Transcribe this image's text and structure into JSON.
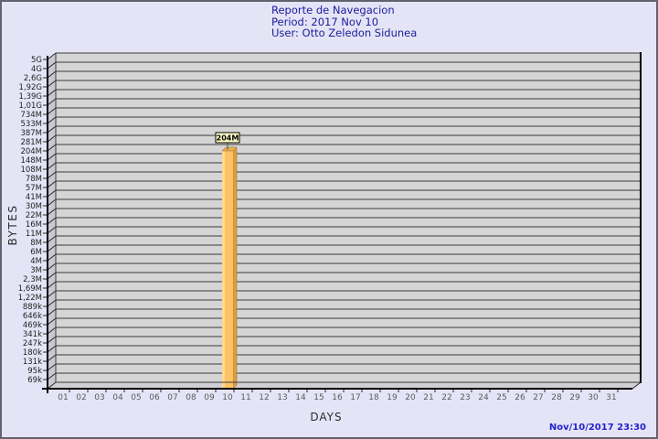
{
  "window": {
    "background_color": "#e4e4f6",
    "border_color": "#62626e"
  },
  "header": {
    "title_line": "Reporte de Navegacion",
    "period_line": "Period: 2017 Nov 10",
    "user_line": "User: Otto Zeledon Sidunea",
    "text_color": "#1c1c9c"
  },
  "footer": {
    "timestamp": "Nov/10/2017 23:30",
    "text_color": "#2222cc"
  },
  "chart_data": {
    "type": "bar",
    "title": "Reporte de Navegacion",
    "subtitle": [
      "Period: 2017 Nov 10",
      "User: Otto Zeledon Sidunea"
    ],
    "xlabel": "DAYS",
    "ylabel": "BYTES",
    "style": "3d-bar",
    "grid": true,
    "legend": "none",
    "scale_note": "logarithmic-like descending byte scale, top 5G to bottom 69k",
    "x_tick_labels": [
      "01",
      "02",
      "03",
      "04",
      "05",
      "06",
      "07",
      "08",
      "09",
      "10",
      "11",
      "12",
      "13",
      "14",
      "15",
      "16",
      "17",
      "18",
      "19",
      "20",
      "21",
      "22",
      "23",
      "24",
      "25",
      "26",
      "27",
      "28",
      "29",
      "30",
      "31"
    ],
    "y_tick_labels": [
      "5G",
      "4G",
      "2,6G",
      "1,92G",
      "1,39G",
      "1,01G",
      "734M",
      "533M",
      "387M",
      "281M",
      "204M",
      "148M",
      "108M",
      "78M",
      "57M",
      "41M",
      "30M",
      "22M",
      "16M",
      "11M",
      "8M",
      "6M",
      "4M",
      "3M",
      "2,3M",
      "1,69M",
      "1,22M",
      "889k",
      "646k",
      "469k",
      "341k",
      "247k",
      "180k",
      "131k",
      "95k",
      "69k"
    ],
    "values": [
      0,
      0,
      0,
      0,
      0,
      0,
      0,
      0,
      0,
      204000000,
      0,
      0,
      0,
      0,
      0,
      0,
      0,
      0,
      0,
      0,
      0,
      0,
      0,
      0,
      0,
      0,
      0,
      0,
      0,
      0,
      0
    ],
    "bars": [
      {
        "day": "10",
        "value_label": "204M",
        "value_bytes": 204000000
      }
    ],
    "colors": {
      "plot_bg": "#d5d5d5",
      "wall_bg": "#c8c8d0",
      "floor_bg": "#cfcfd5",
      "grid": "#3c3c3c",
      "bar_face": "#fdc266",
      "bar_highlight": "#ffd98c",
      "bar_side": "#dc9f3f",
      "bar_top": "#edb055",
      "annotation_bg": "#ffffc8",
      "annotation_border": "#000000"
    }
  }
}
